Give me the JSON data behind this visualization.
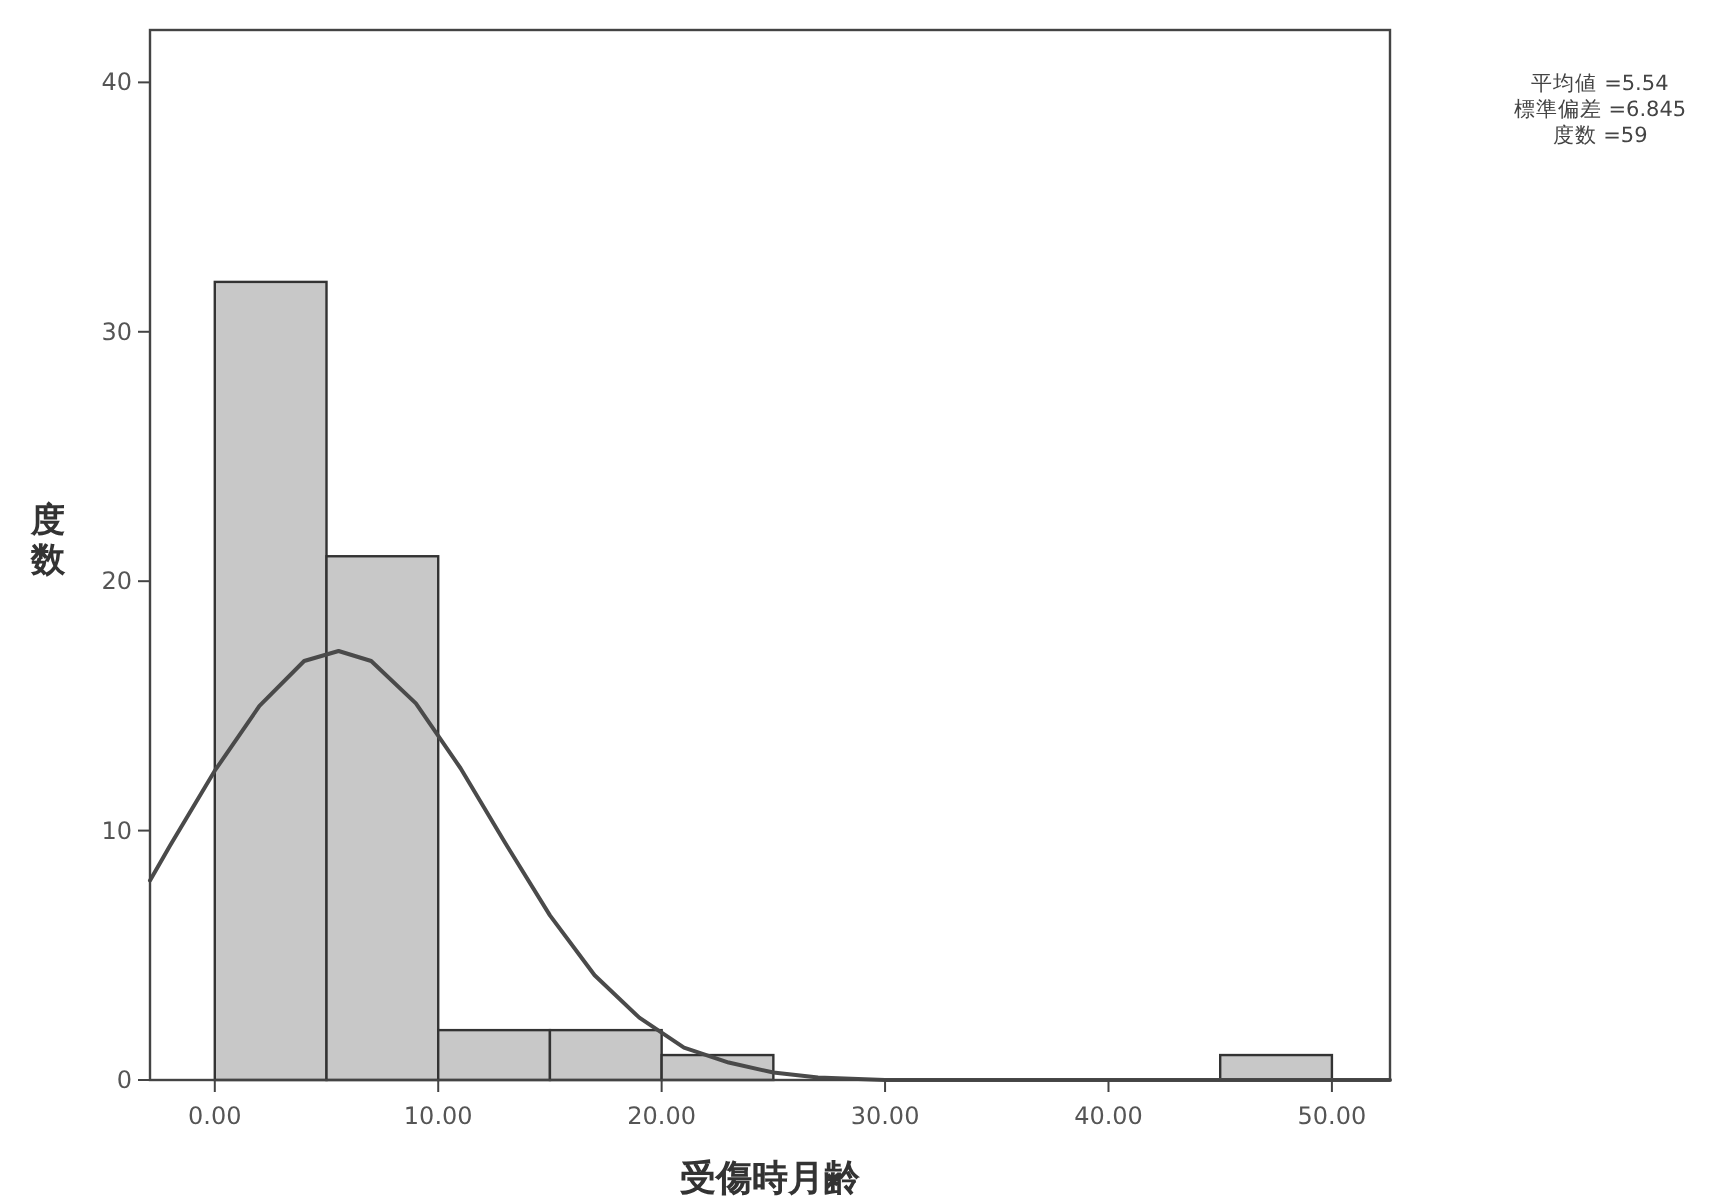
{
  "chart_data": {
    "type": "histogram",
    "xlabel": "受傷時月齢",
    "ylabel": "度数",
    "annotations": [
      "平均値 =5.54",
      "標準偏差 =6.845",
      "度数 =59"
    ],
    "series": [
      {
        "bins": [
          0,
          5,
          10,
          15,
          20,
          25,
          30,
          35,
          40,
          45,
          50
        ],
        "values": [
          32,
          21,
          2,
          2,
          1,
          0,
          0,
          0,
          0,
          1
        ],
        "color": "#c8c8c8"
      },
      {
        "type": "line",
        "color": "#4a4a4a",
        "x": [
          -2.9,
          -2,
          0,
          2,
          4,
          5.54,
          7,
          9,
          11,
          13,
          15,
          17,
          19,
          21,
          23,
          25,
          27,
          30,
          35,
          40,
          45,
          52.6
        ],
        "values": [
          8.0,
          9.4,
          12.4,
          15.0,
          16.8,
          17.2,
          16.8,
          15.1,
          12.5,
          9.5,
          6.6,
          4.2,
          2.5,
          1.3,
          0.7,
          0.3,
          0.1,
          0,
          0,
          0,
          0,
          0
        ]
      }
    ],
    "xlim": [
      -2.9,
      52.6
    ],
    "ylim": [
      0,
      42.1
    ],
    "xticks": [
      {
        "value": 0,
        "label": "0.00"
      },
      {
        "value": 10,
        "label": "10.00"
      },
      {
        "value": 20,
        "label": "20.00"
      },
      {
        "value": 30,
        "label": "30.00"
      },
      {
        "value": 40,
        "label": "40.00"
      },
      {
        "value": 50,
        "label": "50.00"
      }
    ],
    "yticks": [
      0,
      10,
      20,
      30,
      40
    ],
    "grid": false
  }
}
